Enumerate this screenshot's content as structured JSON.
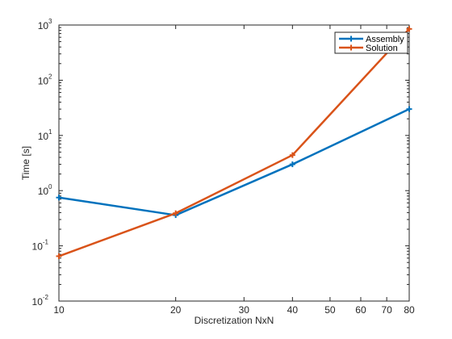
{
  "chart_data": {
    "type": "line",
    "xscale": "log",
    "yscale": "log",
    "x": [
      10,
      20,
      40,
      80
    ],
    "series": [
      {
        "name": "Assembly",
        "values": [
          0.75,
          0.36,
          3.0,
          30.0
        ],
        "color": "#0072BD"
      },
      {
        "name": "Solution",
        "values": [
          0.065,
          0.39,
          4.4,
          850.0
        ],
        "color": "#D95319"
      }
    ],
    "xlim": [
      10,
      80
    ],
    "ylim": [
      0.01,
      1000
    ],
    "xticks": [
      10,
      20,
      30,
      40,
      50,
      60,
      70,
      80
    ],
    "xtick_labels": [
      "10",
      "20",
      "30",
      "40",
      "50",
      "60",
      "70",
      "80"
    ],
    "yticks": [
      0.01,
      0.1,
      1,
      10,
      100,
      1000
    ],
    "ytick_labels": [
      {
        "base": "10",
        "exp": "-2"
      },
      {
        "base": "10",
        "exp": "-1"
      },
      {
        "base": "10",
        "exp": "0"
      },
      {
        "base": "10",
        "exp": "1"
      },
      {
        "base": "10",
        "exp": "2"
      },
      {
        "base": "10",
        "exp": "3"
      }
    ],
    "xlabel": "Discretization NxN",
    "ylabel": "Time [s]",
    "grid": false,
    "legend": "top-right",
    "axis_color": "#262626"
  }
}
